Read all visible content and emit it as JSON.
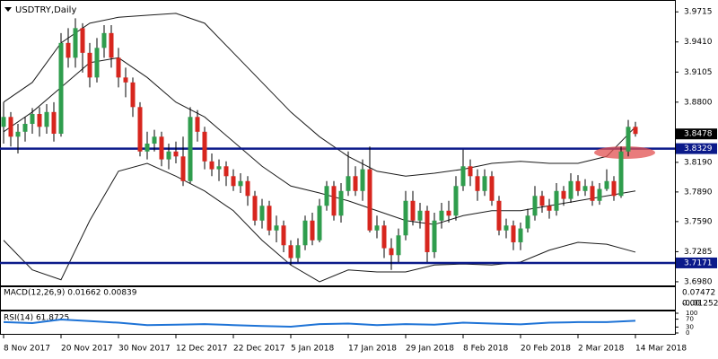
{
  "chart_data": {
    "type": "candlestick",
    "title": "USDTRY,Daily",
    "categories": [
      "8 Nov 2017",
      null,
      null,
      null,
      null,
      null,
      null,
      null,
      "20 Nov 2017",
      null,
      null,
      null,
      null,
      null,
      null,
      null,
      "30 Nov 2017",
      null,
      null,
      null,
      null,
      null,
      null,
      null,
      "12 Dec 2017",
      null,
      null,
      null,
      null,
      null,
      null,
      null,
      "22 Dec 2017",
      null,
      null,
      null,
      null,
      null,
      null,
      null,
      "5 Jan 2018",
      null,
      null,
      null,
      null,
      null,
      null,
      null,
      "17 Jan 2018",
      null,
      null,
      null,
      null,
      null,
      null,
      null,
      "29 Jan 2018",
      null,
      null,
      null,
      null,
      null,
      null,
      null,
      "8 Feb 2018",
      null,
      null,
      null,
      null,
      null,
      null,
      null,
      "20 Feb 2018",
      null,
      null,
      null,
      null,
      null,
      null,
      null,
      "2 Mar 2018",
      null,
      null,
      null,
      null,
      null,
      null,
      null,
      "14 Mar 2018"
    ],
    "ohlc": [
      [
        3.855,
        3.88,
        3.838,
        3.865
      ],
      [
        3.865,
        3.87,
        3.835,
        3.845
      ],
      [
        3.845,
        3.858,
        3.828,
        3.85
      ],
      [
        3.85,
        3.865,
        3.84,
        3.858
      ],
      [
        3.858,
        3.874,
        3.848,
        3.868
      ],
      [
        3.868,
        3.875,
        3.845,
        3.855
      ],
      [
        3.855,
        3.878,
        3.848,
        3.87
      ],
      [
        3.87,
        3.88,
        3.84,
        3.848
      ],
      [
        3.848,
        3.95,
        3.845,
        3.94
      ],
      [
        3.94,
        3.955,
        3.915,
        3.925
      ],
      [
        3.925,
        3.965,
        3.915,
        3.955
      ],
      [
        3.955,
        3.96,
        3.91,
        3.93
      ],
      [
        3.93,
        3.94,
        3.895,
        3.905
      ],
      [
        3.905,
        3.945,
        3.9,
        3.935
      ],
      [
        3.935,
        3.958,
        3.925,
        3.95
      ],
      [
        3.95,
        3.958,
        3.915,
        3.925
      ],
      [
        3.925,
        3.935,
        3.895,
        3.905
      ],
      [
        3.905,
        3.915,
        3.885,
        3.9
      ],
      [
        3.9,
        3.905,
        3.865,
        3.875
      ],
      [
        3.875,
        3.88,
        3.825,
        3.83
      ],
      [
        3.83,
        3.85,
        3.822,
        3.838
      ],
      [
        3.838,
        3.852,
        3.83,
        3.845
      ],
      [
        3.845,
        3.85,
        3.815,
        3.822
      ],
      [
        3.822,
        3.838,
        3.812,
        3.83
      ],
      [
        3.83,
        3.84,
        3.818,
        3.825
      ],
      [
        3.825,
        3.845,
        3.795,
        3.8
      ],
      [
        3.8,
        3.875,
        3.798,
        3.865
      ],
      [
        3.865,
        3.872,
        3.84,
        3.85
      ],
      [
        3.85,
        3.855,
        3.812,
        3.82
      ],
      [
        3.82,
        3.828,
        3.805,
        3.812
      ],
      [
        3.812,
        3.822,
        3.8,
        3.815
      ],
      [
        3.815,
        3.82,
        3.795,
        3.805
      ],
      [
        3.805,
        3.812,
        3.79,
        3.795
      ],
      [
        3.795,
        3.808,
        3.788,
        3.8
      ],
      [
        3.8,
        3.805,
        3.775,
        3.785
      ],
      [
        3.785,
        3.79,
        3.755,
        3.76
      ],
      [
        3.76,
        3.782,
        3.752,
        3.775
      ],
      [
        3.775,
        3.78,
        3.745,
        3.75
      ],
      [
        3.75,
        3.765,
        3.738,
        3.755
      ],
      [
        3.755,
        3.76,
        3.728,
        3.735
      ],
      [
        3.735,
        3.74,
        3.715,
        3.722
      ],
      [
        3.722,
        3.742,
        3.718,
        3.735
      ],
      [
        3.735,
        3.765,
        3.73,
        3.76
      ],
      [
        3.76,
        3.768,
        3.735,
        3.74
      ],
      [
        3.74,
        3.782,
        3.738,
        3.775
      ],
      [
        3.775,
        3.8,
        3.77,
        3.795
      ],
      [
        3.795,
        3.8,
        3.76,
        3.765
      ],
      [
        3.765,
        3.798,
        3.758,
        3.79
      ],
      [
        3.79,
        3.83,
        3.785,
        3.805
      ],
      [
        3.805,
        3.815,
        3.785,
        3.79
      ],
      [
        3.79,
        3.822,
        3.78,
        3.812
      ],
      [
        3.812,
        3.835,
        3.748,
        3.75
      ],
      [
        3.75,
        3.765,
        3.742,
        3.755
      ],
      [
        3.755,
        3.76,
        3.722,
        3.732
      ],
      [
        3.732,
        3.742,
        3.71,
        3.725
      ],
      [
        3.725,
        3.752,
        3.718,
        3.745
      ],
      [
        3.745,
        3.79,
        3.74,
        3.78
      ],
      [
        3.78,
        3.79,
        3.755,
        3.76
      ],
      [
        3.76,
        3.778,
        3.752,
        3.77
      ],
      [
        3.77,
        3.775,
        3.718,
        3.728
      ],
      [
        3.728,
        3.768,
        3.722,
        3.76
      ],
      [
        3.76,
        3.778,
        3.752,
        3.77
      ],
      [
        3.77,
        3.78,
        3.758,
        3.765
      ],
      [
        3.765,
        3.805,
        3.76,
        3.795
      ],
      [
        3.795,
        3.832,
        3.79,
        3.815
      ],
      [
        3.815,
        3.822,
        3.795,
        3.805
      ],
      [
        3.805,
        3.812,
        3.78,
        3.79
      ],
      [
        3.79,
        3.812,
        3.785,
        3.805
      ],
      [
        3.805,
        3.81,
        3.775,
        3.78
      ],
      [
        3.78,
        3.785,
        3.745,
        3.75
      ],
      [
        3.75,
        3.762,
        3.742,
        3.755
      ],
      [
        3.755,
        3.76,
        3.73,
        3.738
      ],
      [
        3.738,
        3.758,
        3.73,
        3.752
      ],
      [
        3.752,
        3.772,
        3.748,
        3.765
      ],
      [
        3.765,
        3.795,
        3.76,
        3.785
      ],
      [
        3.785,
        3.79,
        3.768,
        3.775
      ],
      [
        3.775,
        3.782,
        3.762,
        3.77
      ],
      [
        3.77,
        3.798,
        3.765,
        3.79
      ],
      [
        3.79,
        3.795,
        3.775,
        3.782
      ],
      [
        3.782,
        3.808,
        3.778,
        3.8
      ],
      [
        3.8,
        3.806,
        3.785,
        3.79
      ],
      [
        3.79,
        3.802,
        3.785,
        3.795
      ],
      [
        3.795,
        3.8,
        3.775,
        3.78
      ],
      [
        3.78,
        3.798,
        3.776,
        3.792
      ],
      [
        3.792,
        3.812,
        3.79,
        3.8
      ],
      [
        3.8,
        3.805,
        3.78,
        3.785
      ],
      [
        3.785,
        3.835,
        3.783,
        3.83
      ],
      [
        3.83,
        3.862,
        3.825,
        3.855
      ],
      [
        3.855,
        3.86,
        3.845,
        3.8478
      ]
    ],
    "up_color": "#2f9d4d",
    "down_color": "#d7261e",
    "ylim": [
      3.6934,
      3.9826
    ],
    "yticks": [
      3.9715,
      {
        "value": 3.941,
        "label": "3.9410"
      },
      3.9105,
      {
        "value": 3.88,
        "label": "3.8800"
      },
      {
        "value": 3.819,
        "label": "3.8190"
      },
      {
        "value": 3.789,
        "label": "3.7890"
      },
      {
        "value": 3.759,
        "label": "3.7590"
      },
      3.7285,
      {
        "value": 3.698,
        "label": "3.6980"
      }
    ],
    "band_x": [
      0,
      4,
      8,
      12,
      16,
      20,
      24,
      28,
      32,
      36,
      40,
      44,
      48,
      52,
      56,
      60,
      64,
      68,
      72,
      76,
      80,
      84,
      88
    ],
    "band_color": "#1a1a1a",
    "bands": [
      {
        "values": [
          3.88,
          3.9,
          3.94,
          3.96,
          3.966,
          3.968,
          3.97,
          3.96,
          3.93,
          3.9,
          3.87,
          3.845,
          3.825,
          3.81,
          3.805,
          3.808,
          3.812,
          3.818,
          3.82,
          3.818,
          3.818,
          3.825,
          3.855
        ]
      },
      {
        "values": [
          3.85,
          3.87,
          3.895,
          3.92,
          3.925,
          3.905,
          3.88,
          3.865,
          3.84,
          3.815,
          3.795,
          3.788,
          3.78,
          3.77,
          3.76,
          3.756,
          3.765,
          3.77,
          3.77,
          3.775,
          3.78,
          3.785,
          3.79
        ]
      },
      {
        "values": [
          3.74,
          3.71,
          3.7,
          3.76,
          3.81,
          3.818,
          3.805,
          3.79,
          3.77,
          3.74,
          3.715,
          3.698,
          3.71,
          3.708,
          3.708,
          3.715,
          3.716,
          3.715,
          3.718,
          3.73,
          3.738,
          3.736,
          3.728
        ]
      }
    ],
    "levels": [
      3.8329,
      3.7171
    ],
    "level_color": "#0b1a8a",
    "last_price": 3.8478,
    "macd": {
      "label": "MACD(12,26,9) 0.01662 0.00839",
      "ticks": [
        "0.07472",
        "0.00",
        "-0.01252"
      ]
    },
    "rsi": {
      "label": "RSI(14) 61.8725",
      "color": "#1e73d6",
      "x": [
        0,
        4,
        8,
        12,
        16,
        20,
        24,
        28,
        32,
        36,
        40,
        44,
        48,
        52,
        56,
        60,
        64,
        68,
        72,
        76,
        80,
        84,
        88
      ],
      "values": [
        55,
        50,
        68,
        60,
        52,
        40,
        42,
        45,
        40,
        35,
        32,
        45,
        48,
        40,
        45,
        42,
        52,
        48,
        44,
        52,
        55,
        55,
        61.8725
      ],
      "ylim": [
        0,
        100
      ],
      "yticks": [
        100,
        70,
        30,
        0
      ]
    }
  }
}
